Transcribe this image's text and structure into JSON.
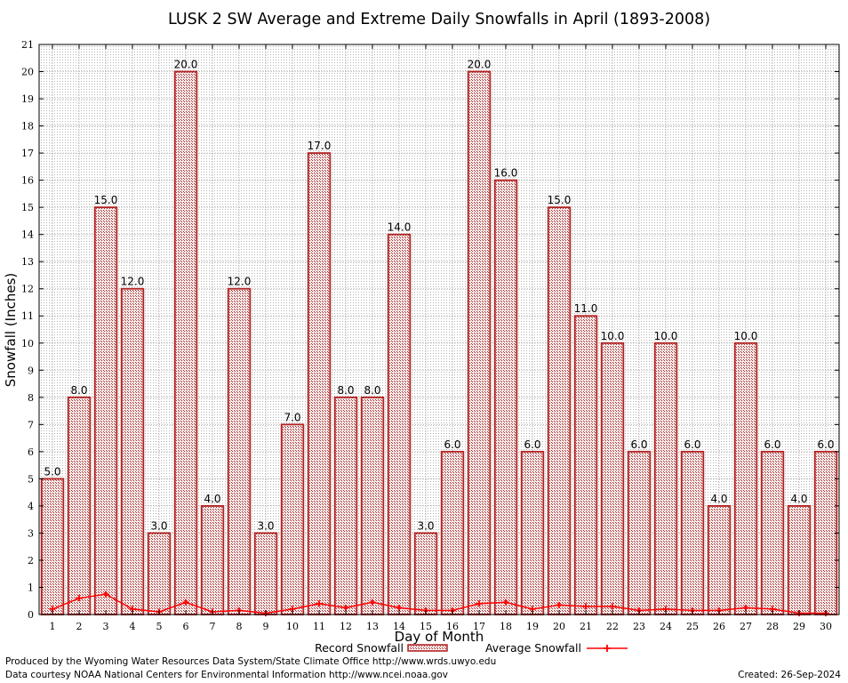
{
  "chart_data": {
    "type": "bar",
    "title": "LUSK 2 SW Average and Extreme Daily Snowfalls in April (1893-2008)",
    "xlabel": "Day of Month",
    "ylabel": "Snowfall (Inches)",
    "ylim": [
      0,
      21
    ],
    "yticks": [
      0,
      1,
      2,
      3,
      4,
      5,
      6,
      7,
      8,
      9,
      10,
      11,
      12,
      13,
      14,
      15,
      16,
      17,
      18,
      19,
      20,
      21
    ],
    "grid": true,
    "legend": "bottom-center",
    "categories": [
      "1",
      "2",
      "3",
      "4",
      "5",
      "6",
      "7",
      "8",
      "9",
      "10",
      "11",
      "12",
      "13",
      "14",
      "15",
      "16",
      "17",
      "18",
      "19",
      "20",
      "21",
      "22",
      "23",
      "24",
      "25",
      "26",
      "27",
      "28",
      "29",
      "30"
    ],
    "series": [
      {
        "name": "Record Snowfall",
        "type": "bar",
        "color": "#b22222",
        "values": [
          5,
          8,
          15,
          12,
          3,
          20,
          4,
          12,
          3,
          7,
          17,
          8,
          8,
          14,
          3,
          6,
          20,
          16,
          6,
          15,
          11,
          10,
          6,
          10,
          6,
          4,
          10,
          6,
          4,
          6
        ],
        "labels": [
          "5.0",
          "8.0",
          "15.0",
          "12.0",
          "3.0",
          "20.0",
          "4.0",
          "12.0",
          "3.0",
          "7.0",
          "17.0",
          "8.0",
          "8.0",
          "14.0",
          "3.0",
          "6.0",
          "20.0",
          "16.0",
          "6.0",
          "15.0",
          "11.0",
          "10.0",
          "6.0",
          "10.0",
          "6.0",
          "4.0",
          "10.0",
          "6.0",
          "4.0",
          "6.0"
        ]
      },
      {
        "name": "Average Snowfall",
        "type": "line",
        "color": "#ff0000",
        "values": [
          0.2,
          0.6,
          0.75,
          0.2,
          0.1,
          0.45,
          0.1,
          0.15,
          0.05,
          0.2,
          0.4,
          0.25,
          0.45,
          0.25,
          0.15,
          0.15,
          0.4,
          0.45,
          0.2,
          0.35,
          0.3,
          0.3,
          0.15,
          0.2,
          0.15,
          0.15,
          0.25,
          0.2,
          0.05,
          0.05
        ]
      }
    ]
  },
  "footer": {
    "produced_by": "Produced by the Wyoming Water Resources Data System/State Climate Office http://www.wrds.uwyo.edu",
    "data_courtesy": "Data courtesy NOAA National Centers for Environmental Information http://www.ncei.noaa.gov",
    "created": "Created:  26-Sep-2024"
  }
}
